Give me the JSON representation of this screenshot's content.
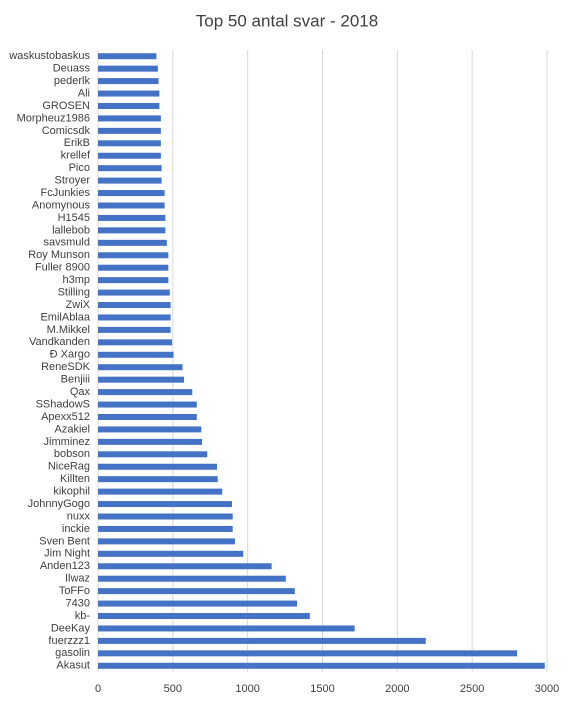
{
  "chart_data": {
    "type": "hbar",
    "title": "Top 50 antal svar - 2018",
    "categories": [
      "waskustobaskus",
      "Deuass",
      "pederlk",
      "Ali",
      "GROSEN",
      "Morpheuz1986",
      "Comicsdk",
      "ErikB",
      "krellef",
      "Pico",
      "Stroyer",
      "FcJunkies",
      "Anomynous",
      "H1545",
      "lallebob",
      "savsmuld",
      "Roy Munson",
      "Fuller 8900",
      "h3mp",
      "Stilling",
      "ZwiX",
      "EmilAblaa",
      "M.Mikkel",
      "Vandkanden",
      "Ð Xargo",
      "ReneSDK",
      "Benjiii",
      "Qax",
      "SShadowS",
      "Apexx512",
      "Azakiel",
      "Jimminez",
      "bobson",
      "NiceRag",
      "Killten",
      "kikophil",
      "JohnnyGogo",
      "nuxx",
      "inckie",
      "Sven Bent",
      "Jim Night",
      "Anden123",
      "Ilwaz",
      "ToFFo",
      "7430",
      "kb-",
      "DeeKay",
      "fuerzzz1",
      "gasolin",
      "Akasut"
    ],
    "values": [
      390,
      400,
      405,
      410,
      410,
      420,
      420,
      420,
      420,
      425,
      425,
      445,
      445,
      450,
      450,
      460,
      470,
      470,
      470,
      480,
      485,
      485,
      485,
      495,
      505,
      565,
      575,
      630,
      660,
      660,
      690,
      695,
      730,
      795,
      800,
      830,
      895,
      900,
      900,
      915,
      970,
      1160,
      1255,
      1315,
      1330,
      1415,
      1715,
      2190,
      2800,
      2985
    ],
    "color": "#4472c4",
    "xlim": [
      0,
      3000
    ],
    "xticks": [
      0,
      500,
      1000,
      1500,
      2000,
      2500,
      3000
    ],
    "grid": true
  }
}
